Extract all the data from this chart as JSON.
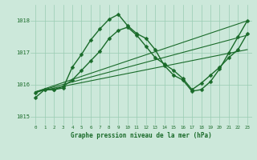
{
  "title": "Graphe pression niveau de la mer (hPa)",
  "background_color": "#cce8da",
  "grid_color": "#99ccb3",
  "line_color": "#1a6b2a",
  "xlim": [
    -0.5,
    23.5
  ],
  "ylim": [
    1014.75,
    1018.5
  ],
  "yticks": [
    1015,
    1016,
    1017,
    1018
  ],
  "xticks": [
    0,
    1,
    2,
    3,
    4,
    5,
    6,
    7,
    8,
    9,
    10,
    11,
    12,
    13,
    14,
    15,
    16,
    17,
    18,
    19,
    20,
    21,
    22,
    23
  ],
  "series": [
    {
      "x": [
        0,
        1,
        2,
        3,
        4,
        5,
        6,
        7,
        8,
        9,
        10,
        11,
        12,
        13,
        14,
        15,
        16,
        17,
        18,
        19,
        20,
        21,
        22,
        23
      ],
      "y": [
        1015.75,
        1015.85,
        1015.85,
        1015.9,
        1016.55,
        1016.95,
        1017.4,
        1017.75,
        1018.05,
        1018.2,
        1017.85,
        1017.6,
        1017.45,
        1017.1,
        1016.6,
        1016.3,
        1016.15,
        1015.8,
        1015.85,
        1016.1,
        1016.5,
        1017.0,
        1017.5,
        1018.0
      ],
      "marker": "D",
      "markersize": 2.5,
      "linewidth": 1.0
    },
    {
      "x": [
        0,
        1,
        2,
        3,
        4,
        5,
        6,
        7,
        8,
        9,
        10,
        11,
        12,
        13,
        14,
        15,
        16,
        17,
        18,
        19,
        20,
        21,
        22,
        23
      ],
      "y": [
        1015.6,
        1015.85,
        1015.85,
        1015.95,
        1016.15,
        1016.45,
        1016.75,
        1017.05,
        1017.45,
        1017.7,
        1017.8,
        1017.55,
        1017.2,
        1016.85,
        1016.65,
        1016.45,
        1016.2,
        1015.85,
        1016.05,
        1016.3,
        1016.55,
        1016.85,
        1017.1,
        1017.6
      ],
      "marker": "D",
      "markersize": 2.5,
      "linewidth": 1.0
    },
    {
      "x": [
        0,
        23
      ],
      "y": [
        1015.78,
        1018.0
      ],
      "marker": null,
      "markersize": 0,
      "linewidth": 0.8
    },
    {
      "x": [
        0,
        23
      ],
      "y": [
        1015.78,
        1017.55
      ],
      "marker": null,
      "markersize": 0,
      "linewidth": 0.8
    },
    {
      "x": [
        0,
        23
      ],
      "y": [
        1015.78,
        1017.1
      ],
      "marker": null,
      "markersize": 0,
      "linewidth": 0.8
    }
  ]
}
